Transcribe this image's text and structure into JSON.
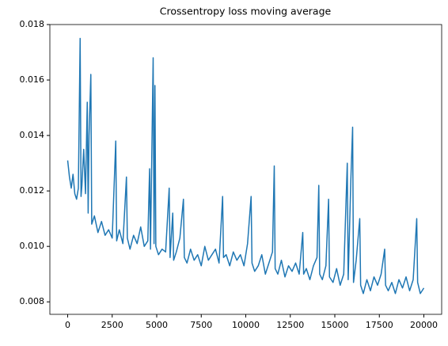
{
  "chart_data": {
    "type": "line",
    "title": "Crossentropy loss moving average",
    "x": [
      0,
      100,
      200,
      300,
      400,
      500,
      600,
      700,
      750,
      800,
      900,
      1000,
      1100,
      1150,
      1200,
      1300,
      1350,
      1500,
      1700,
      1900,
      2100,
      2300,
      2500,
      2700,
      2750,
      2900,
      3100,
      3300,
      3350,
      3500,
      3700,
      3900,
      4100,
      4300,
      4500,
      4600,
      4650,
      4800,
      4850,
      4900,
      4950,
      5100,
      5300,
      5500,
      5700,
      5750,
      5900,
      5950,
      6100,
      6300,
      6500,
      6550,
      6700,
      6900,
      7100,
      7300,
      7500,
      7700,
      7900,
      8100,
      8300,
      8500,
      8700,
      8750,
      8900,
      9100,
      9300,
      9500,
      9700,
      9900,
      10100,
      10300,
      10350,
      10500,
      10700,
      10900,
      11100,
      11300,
      11500,
      11600,
      11650,
      11800,
      12000,
      12200,
      12400,
      12600,
      12800,
      13000,
      13200,
      13250,
      13400,
      13600,
      13800,
      14000,
      14100,
      14150,
      14300,
      14500,
      14650,
      14700,
      14900,
      15100,
      15300,
      15500,
      15700,
      15750,
      15900,
      16000,
      16050,
      16200,
      16400,
      16450,
      16600,
      16800,
      17000,
      17200,
      17400,
      17600,
      17800,
      17850,
      18000,
      18200,
      18400,
      18600,
      18800,
      19000,
      19200,
      19400,
      19600,
      19650,
      19800,
      20000
    ],
    "series": [
      {
        "color": "#1f77b4",
        "values": [
          0.0131,
          0.0125,
          0.0121,
          0.0126,
          0.0119,
          0.0117,
          0.0121,
          0.0175,
          0.0118,
          0.0122,
          0.0135,
          0.0119,
          0.0152,
          0.0112,
          0.014,
          0.0162,
          0.0108,
          0.0111,
          0.0105,
          0.0109,
          0.0104,
          0.0106,
          0.0103,
          0.0138,
          0.0102,
          0.0106,
          0.0101,
          0.0125,
          0.0103,
          0.0099,
          0.0104,
          0.0101,
          0.0107,
          0.01,
          0.0102,
          0.0128,
          0.0099,
          0.0168,
          0.0101,
          0.0158,
          0.01,
          0.0097,
          0.0099,
          0.0098,
          0.0121,
          0.0096,
          0.0112,
          0.0095,
          0.0098,
          0.0103,
          0.0117,
          0.0096,
          0.0094,
          0.0099,
          0.0095,
          0.0097,
          0.0093,
          0.01,
          0.0095,
          0.0097,
          0.0099,
          0.0094,
          0.0118,
          0.0096,
          0.0097,
          0.0093,
          0.0098,
          0.0095,
          0.0097,
          0.0093,
          0.0101,
          0.0118,
          0.0094,
          0.0091,
          0.0093,
          0.0097,
          0.009,
          0.0094,
          0.0098,
          0.0129,
          0.0092,
          0.009,
          0.0095,
          0.0089,
          0.0093,
          0.0091,
          0.0094,
          0.009,
          0.0105,
          0.009,
          0.0092,
          0.0088,
          0.0093,
          0.0096,
          0.0122,
          0.009,
          0.0088,
          0.0093,
          0.0117,
          0.0089,
          0.0087,
          0.0092,
          0.0086,
          0.009,
          0.013,
          0.0088,
          0.0124,
          0.0143,
          0.0087,
          0.0095,
          0.011,
          0.0086,
          0.0083,
          0.0088,
          0.0084,
          0.0089,
          0.0086,
          0.009,
          0.0099,
          0.0086,
          0.0084,
          0.0087,
          0.0083,
          0.0088,
          0.0085,
          0.0089,
          0.0084,
          0.0088,
          0.011,
          0.0087,
          0.0083,
          0.0085
        ]
      }
    ],
    "xlim": [
      -1000,
      21000
    ],
    "xticks": [
      0,
      2500,
      5000,
      7500,
      10000,
      12500,
      15000,
      17500,
      20000
    ],
    "ylim": [
      0.00755,
      0.018
    ],
    "yticks": [
      0.008,
      {
        "value": 0.01,
        "label": "0.010"
      },
      0.012,
      0.014,
      0.016,
      0.018
    ]
  }
}
